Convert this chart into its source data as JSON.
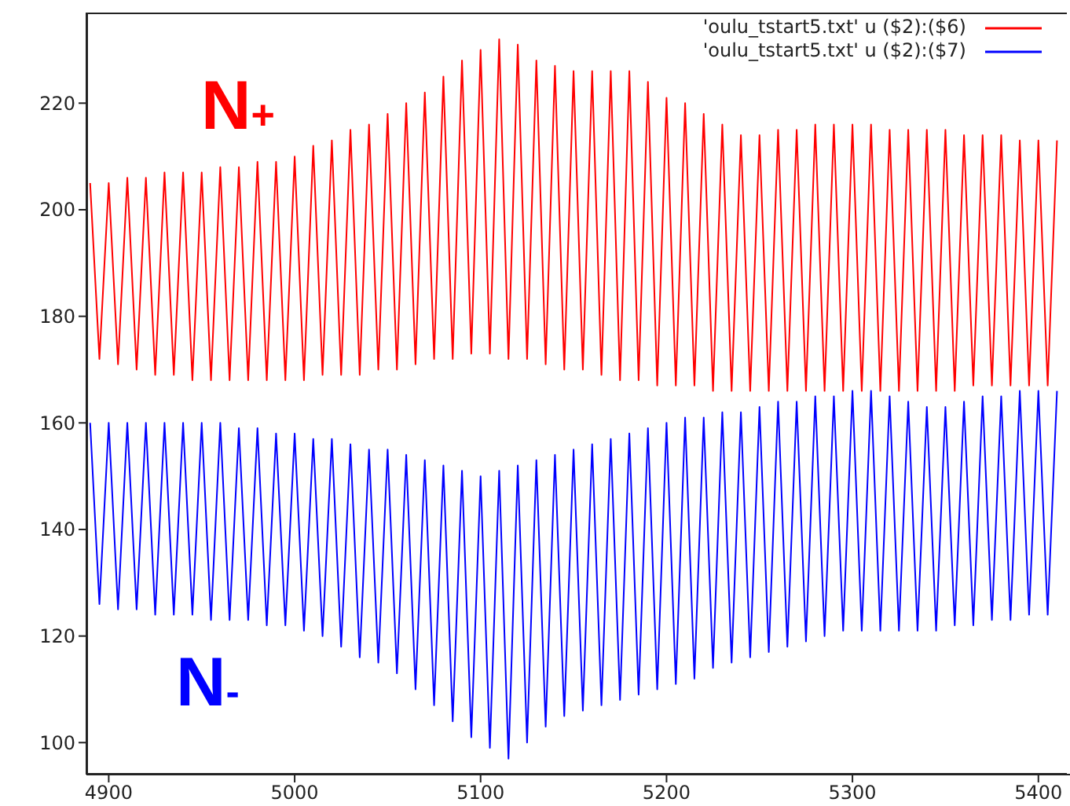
{
  "chart_data": {
    "type": "line",
    "marker": "none",
    "line_style": "solid",
    "legend": "top right",
    "xlim": [
      4888,
      5417
    ],
    "xticks": [
      4900,
      5000,
      5100,
      5200,
      5300,
      5400
    ],
    "ylim": [
      94,
      237
    ],
    "yticks": [
      100,
      120,
      140,
      160,
      180,
      200,
      220
    ],
    "x": [
      4890,
      4895,
      4900,
      4905,
      4910,
      4915,
      4920,
      4925,
      4930,
      4935,
      4940,
      4945,
      4950,
      4955,
      4960,
      4965,
      4970,
      4975,
      4980,
      4985,
      4990,
      4995,
      5000,
      5005,
      5010,
      5015,
      5020,
      5025,
      5030,
      5035,
      5040,
      5045,
      5050,
      5055,
      5060,
      5065,
      5070,
      5075,
      5080,
      5085,
      5090,
      5095,
      5100,
      5105,
      5110,
      5115,
      5120,
      5125,
      5130,
      5135,
      5140,
      5145,
      5150,
      5155,
      5160,
      5165,
      5170,
      5175,
      5180,
      5185,
      5190,
      5195,
      5200,
      5205,
      5210,
      5215,
      5220,
      5225,
      5230,
      5235,
      5240,
      5245,
      5250,
      5255,
      5260,
      5265,
      5270,
      5275,
      5280,
      5285,
      5290,
      5295,
      5300,
      5305,
      5310,
      5315,
      5320,
      5325,
      5330,
      5335,
      5340,
      5345,
      5350,
      5355,
      5360,
      5365,
      5370,
      5375,
      5380,
      5385,
      5390,
      5395,
      5400,
      5405,
      5410
    ],
    "series": [
      {
        "name": "'oulu_tstart5.txt' u ($2):($6)",
        "color": "#ff0000",
        "values": [
          205,
          172,
          205,
          171,
          206,
          170,
          206,
          169,
          207,
          169,
          207,
          168,
          207,
          168,
          208,
          168,
          208,
          168,
          209,
          168,
          209,
          168,
          210,
          168,
          212,
          169,
          213,
          169,
          215,
          169,
          216,
          170,
          218,
          170,
          220,
          171,
          222,
          172,
          225,
          172,
          228,
          173,
          230,
          173,
          232,
          172,
          231,
          172,
          228,
          171,
          227,
          170,
          226,
          170,
          226,
          169,
          226,
          168,
          226,
          168,
          224,
          167,
          221,
          167,
          220,
          167,
          218,
          166,
          216,
          166,
          214,
          166,
          214,
          166,
          215,
          166,
          215,
          166,
          216,
          166,
          216,
          166,
          216,
          166,
          216,
          166,
          215,
          166,
          215,
          166,
          215,
          166,
          215,
          166,
          214,
          167,
          214,
          167,
          214,
          167,
          213,
          167,
          213,
          167,
          213
        ]
      },
      {
        "name": "'oulu_tstart5.txt' u ($2):($7)",
        "color": "#0000ff",
        "values": [
          160,
          126,
          160,
          125,
          160,
          125,
          160,
          124,
          160,
          124,
          160,
          124,
          160,
          123,
          160,
          123,
          159,
          123,
          159,
          122,
          158,
          122,
          158,
          121,
          157,
          120,
          157,
          118,
          156,
          116,
          155,
          115,
          155,
          113,
          154,
          110,
          153,
          107,
          152,
          104,
          151,
          101,
          150,
          99,
          151,
          97,
          152,
          100,
          153,
          103,
          154,
          105,
          155,
          106,
          156,
          107,
          157,
          108,
          158,
          109,
          159,
          110,
          160,
          111,
          161,
          112,
          161,
          114,
          162,
          115,
          162,
          116,
          163,
          117,
          164,
          118,
          164,
          119,
          165,
          120,
          165,
          121,
          166,
          121,
          166,
          121,
          165,
          121,
          164,
          121,
          163,
          121,
          163,
          122,
          164,
          122,
          165,
          123,
          165,
          123,
          166,
          124,
          166,
          124,
          166
        ]
      }
    ],
    "annotations": [
      "N+",
      "N-"
    ]
  }
}
